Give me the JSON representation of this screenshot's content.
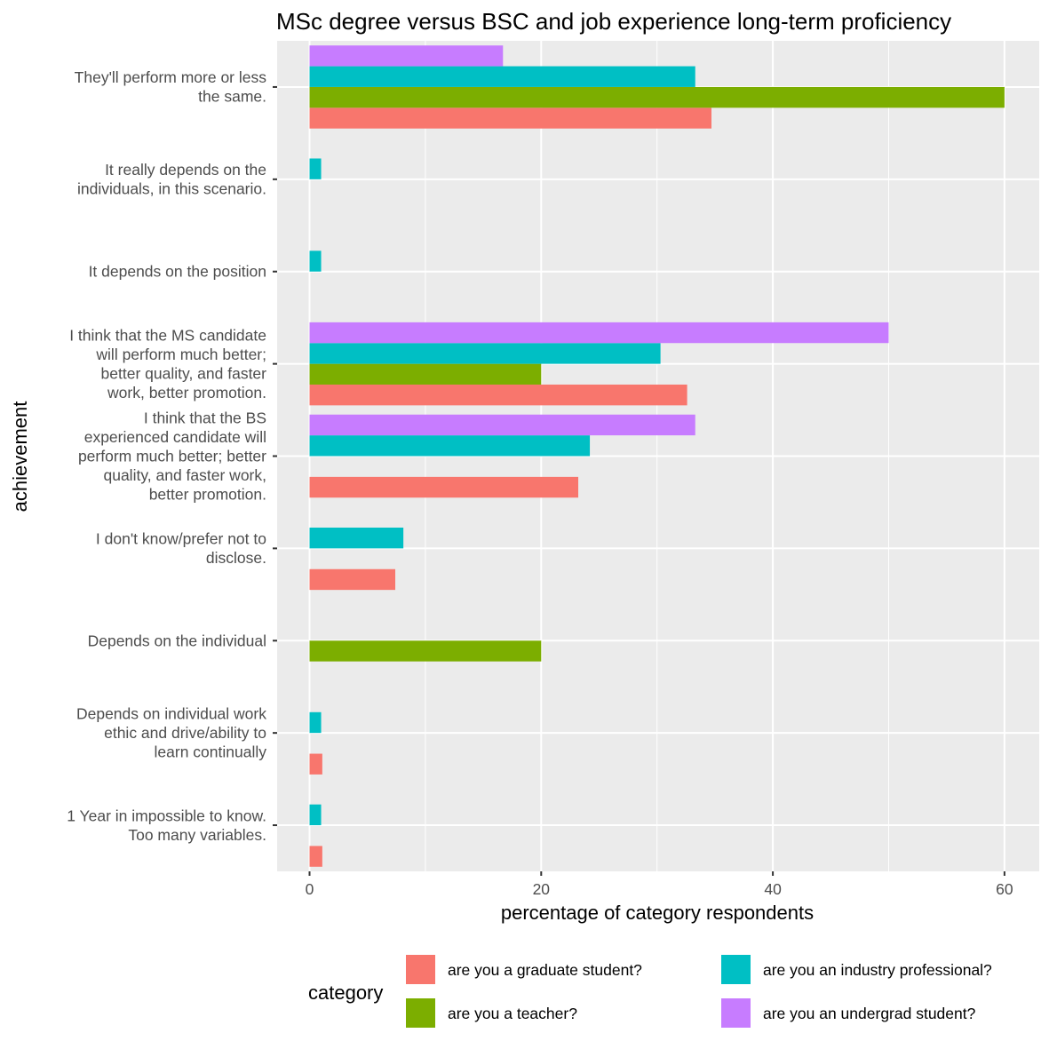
{
  "chart_data": {
    "type": "bar",
    "orientation": "horizontal",
    "title": "MSc degree versus BSC and job experience long-term proficiency",
    "xlabel": "percentage of category respondents",
    "ylabel": "achievement",
    "xlim": [
      -2.8,
      63
    ],
    "xticks": [
      0,
      20,
      40,
      60
    ],
    "grid": true,
    "legend_position": "bottom",
    "legend_title": "category",
    "categories": [
      [
        "They'll perform more or less",
        "the same."
      ],
      [
        "It really depends on the",
        "individuals, in this scenario."
      ],
      [
        "It depends on the position"
      ],
      [
        "I think that the MS candidate",
        "will perform much better;",
        "better quality, and faster",
        "work, better promotion."
      ],
      [
        "I think that the BS",
        "experienced candidate will",
        "perform much better; better",
        "quality, and faster work,",
        "better promotion."
      ],
      [
        "I don't know/prefer not to",
        "disclose."
      ],
      [
        "Depends on the individual"
      ],
      [
        "Depends on individual work",
        "ethic and drive/ability to",
        "learn continually"
      ],
      [
        "1 Year in impossible to know.",
        "Too many variables."
      ]
    ],
    "series": [
      {
        "name": "are you a graduate student?",
        "color": "#F8766D",
        "values": [
          34.7,
          null,
          null,
          32.6,
          23.2,
          7.4,
          null,
          1.1,
          1.1
        ]
      },
      {
        "name": "are you a teacher?",
        "color": "#7CAE00",
        "values": [
          60,
          null,
          null,
          20,
          null,
          null,
          20,
          null,
          null
        ]
      },
      {
        "name": "are you an industry professional?",
        "color": "#00BFC4",
        "values": [
          33.3,
          1.0,
          1.0,
          30.3,
          24.2,
          8.1,
          null,
          1.0,
          1.0
        ]
      },
      {
        "name": "are you an undergrad student?",
        "color": "#C77CFF",
        "values": [
          16.7,
          null,
          null,
          50,
          33.3,
          null,
          null,
          null,
          null
        ]
      }
    ]
  }
}
